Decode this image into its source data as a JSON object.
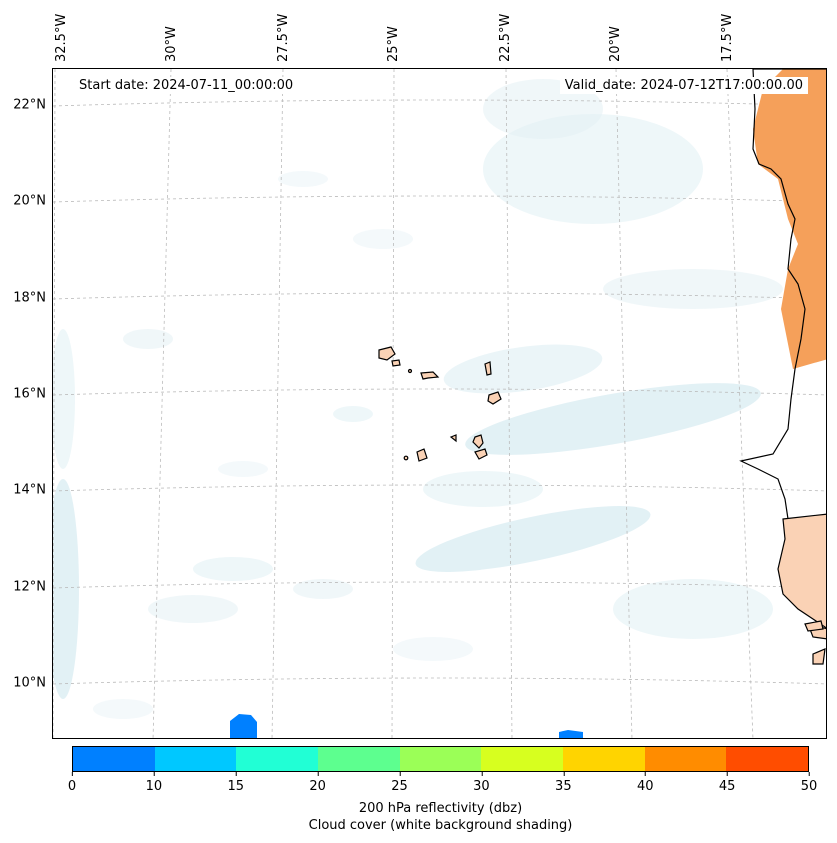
{
  "map": {
    "start_date": "Start date: 2024-07-11_00:00:00",
    "valid_date": "Valid_date: 2024-07-12T17:00:00.00",
    "lon_labels": [
      "32.5°W",
      "30°W",
      "27.5°W",
      "25°W",
      "22.5°W",
      "20°W",
      "17.5°W"
    ],
    "lat_labels": [
      "22°N",
      "20°N",
      "18°N",
      "16°N",
      "14°N",
      "12°N",
      "10°N"
    ],
    "features": [
      "cape-verde-islands",
      "west-africa-coastline",
      "cloud-cover-shading",
      "reflectivity-patches"
    ]
  },
  "colorbar": {
    "ticks": [
      "0",
      "10",
      "15",
      "20",
      "25",
      "30",
      "35",
      "40",
      "45",
      "50"
    ],
    "colors": [
      "#0080ff",
      "#00c8ff",
      "#21ffd5",
      "#5dff8f",
      "#9bff57",
      "#d7ff1f",
      "#ffd400",
      "#ff8c00",
      "#ff4d00"
    ],
    "label": "200 hPa reflectivity (dbz)",
    "sublabel": "Cloud cover (white background shading)"
  },
  "colors": {
    "land_outline": "#000000",
    "island_fill": "#fad2b5",
    "africa_orange": "#f5a05a",
    "cloud_shade": "#d9ecf2",
    "grid": "#bbbbbb"
  }
}
